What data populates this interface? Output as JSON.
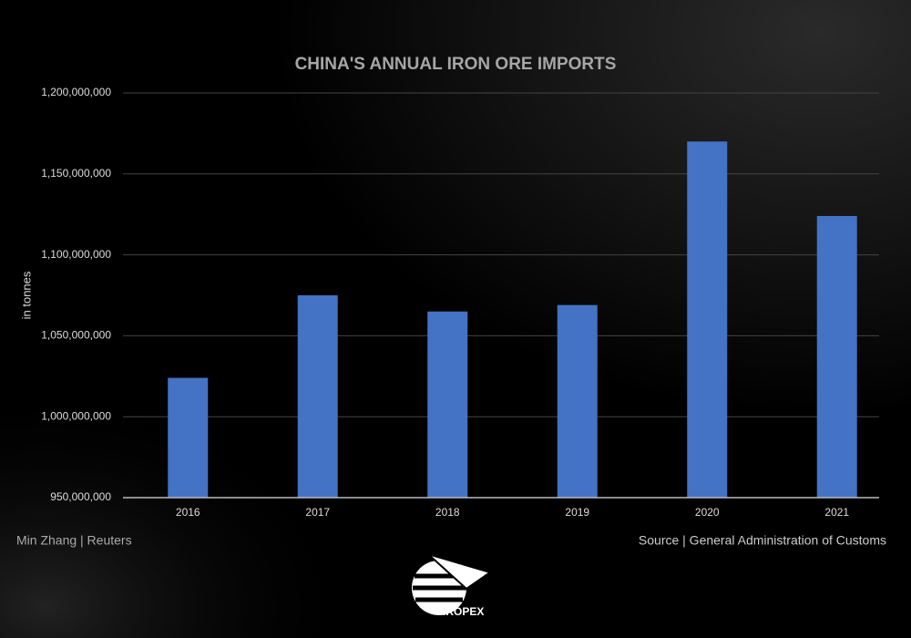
{
  "chart_data": {
    "type": "bar",
    "title": "CHINA'S ANNUAL IRON ORE IMPORTS",
    "y_label": "in tonnes",
    "categories": [
      "2016",
      "2017",
      "2018",
      "2019",
      "2020",
      "2021"
    ],
    "values": [
      1024000000,
      1075000000,
      1065000000,
      1069000000,
      1170000000,
      1124000000
    ],
    "color": "#4472c4",
    "ylim": [
      950000000,
      1200000000
    ],
    "yticks": [
      {
        "value": 950000000,
        "label": "950,000,000"
      },
      {
        "value": 1000000000,
        "label": "1,000,000,000"
      },
      {
        "value": 1050000000,
        "label": "1,050,000,000"
      },
      {
        "value": 1100000000,
        "label": "1,100,000,000"
      },
      {
        "value": 1150000000,
        "label": "1,150,000,000"
      },
      {
        "value": 1200000000,
        "label": "1,200,000,000"
      }
    ],
    "grid": true
  },
  "footer": {
    "author": "Min Zhang | Reuters",
    "source": "Source | General Administration of Customs",
    "logo": "IROPEX"
  }
}
